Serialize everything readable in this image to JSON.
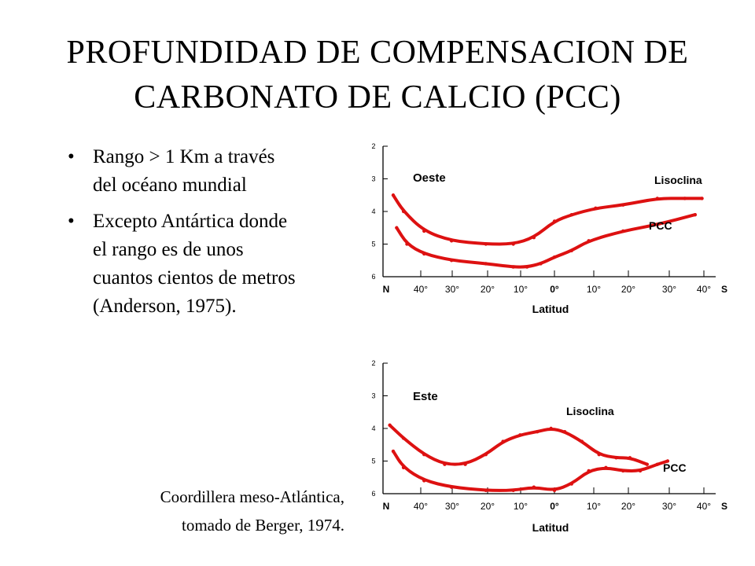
{
  "title": {
    "line1": "PROFUNDIDAD DE COMPENSACION DE",
    "line2": "CARBONATO DE CALCIO (PCC)"
  },
  "bullets": [
    "Rango > 1 Km  a través del océano mundial",
    "Excepto Antártica donde el rango es de unos cuantos cientos de metros (Anderson, 1975)."
  ],
  "bullet_symbol": "•",
  "source": {
    "line1": "Coordillera meso-Atlántica,",
    "line2": "tomado de Berger, 1974."
  },
  "colors": {
    "curve": "#dd1111",
    "axis": "#000000"
  },
  "chart_data": [
    {
      "type": "line",
      "title": "Oeste",
      "xlabel": "Latitud",
      "x_ticks": [
        "N",
        "40°",
        "30°",
        "20°",
        "10°",
        "0°",
        "10°",
        "20°",
        "30°",
        "40°",
        "S"
      ],
      "y_ticks": [
        2,
        3,
        4,
        5,
        6
      ],
      "ylim": [
        6,
        2
      ],
      "series": [
        {
          "name": "Lisoclina",
          "points": [
            [
              -47,
              3.5
            ],
            [
              -44,
              4.0
            ],
            [
              -38,
              4.6
            ],
            [
              -30,
              4.9
            ],
            [
              -20,
              5.0
            ],
            [
              -12,
              5.0
            ],
            [
              -6,
              4.8
            ],
            [
              0,
              4.3
            ],
            [
              5,
              4.1
            ],
            [
              12,
              3.9
            ],
            [
              20,
              3.8
            ],
            [
              30,
              3.6
            ],
            [
              38,
              3.6
            ],
            [
              43,
              3.6
            ]
          ]
        },
        {
          "name": "PCC",
          "points": [
            [
              -46,
              4.5
            ],
            [
              -43,
              5.0
            ],
            [
              -38,
              5.3
            ],
            [
              -30,
              5.5
            ],
            [
              -20,
              5.6
            ],
            [
              -12,
              5.7
            ],
            [
              -8,
              5.7
            ],
            [
              -4,
              5.6
            ],
            [
              0,
              5.4
            ],
            [
              5,
              5.2
            ],
            [
              10,
              4.9
            ],
            [
              20,
              4.6
            ],
            [
              30,
              4.4
            ],
            [
              41,
              4.1
            ]
          ]
        }
      ]
    },
    {
      "type": "line",
      "title": "Este",
      "xlabel": "Latitud",
      "x_ticks": [
        "N",
        "40°",
        "30°",
        "20°",
        "10°",
        "0°",
        "10°",
        "20°",
        "30°",
        "40°",
        "S"
      ],
      "y_ticks": [
        2,
        3,
        4,
        5,
        6
      ],
      "ylim": [
        6,
        2
      ],
      "series": [
        {
          "name": "Lisoclina",
          "points": [
            [
              -48,
              3.9
            ],
            [
              -44,
              4.3
            ],
            [
              -38,
              4.8
            ],
            [
              -32,
              5.1
            ],
            [
              -26,
              5.1
            ],
            [
              -20,
              4.8
            ],
            [
              -15,
              4.4
            ],
            [
              -10,
              4.2
            ],
            [
              -5,
              4.1
            ],
            [
              -1,
              4.0
            ],
            [
              3,
              4.1
            ],
            [
              8,
              4.4
            ],
            [
              13,
              4.8
            ],
            [
              18,
              4.9
            ],
            [
              22,
              4.9
            ],
            [
              27,
              5.1
            ]
          ]
        },
        {
          "name": "PCC",
          "points": [
            [
              -47,
              4.7
            ],
            [
              -44,
              5.2
            ],
            [
              -38,
              5.6
            ],
            [
              -30,
              5.8
            ],
            [
              -20,
              5.9
            ],
            [
              -12,
              5.9
            ],
            [
              -6,
              5.8
            ],
            [
              0,
              5.9
            ],
            [
              5,
              5.7
            ],
            [
              10,
              5.3
            ],
            [
              15,
              5.2
            ],
            [
              20,
              5.3
            ],
            [
              25,
              5.3
            ],
            [
              30,
              5.1
            ],
            [
              33,
              5.0
            ]
          ]
        }
      ]
    }
  ]
}
